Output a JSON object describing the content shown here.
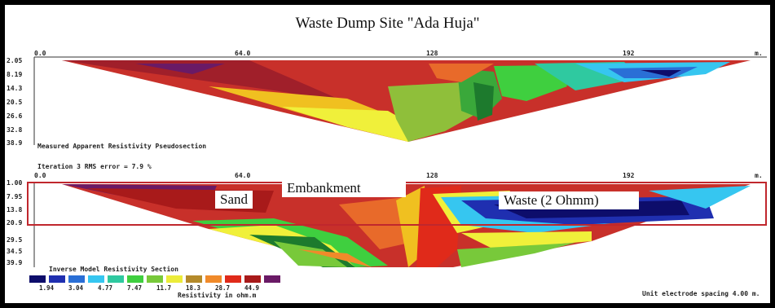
{
  "title": "Waste Dump Site \"Ada Huja\"",
  "x_ticks": [
    "0.0",
    "64.0",
    "128",
    "192",
    "m."
  ],
  "top_section": {
    "y_ticks": [
      "2.05",
      "8.19",
      "14.3",
      "20.5",
      "26.6",
      "32.8",
      "38.9"
    ],
    "caption": "Measured Apparent Resistivity Pseudosection"
  },
  "bottom_section": {
    "header": "Iteration 3 RMS error = 7.9 %",
    "y_ticks": [
      "1.00",
      "7.95",
      "13.8",
      "20.9",
      "29.5",
      "34.5",
      "39.9"
    ],
    "caption": "Inverse Model Resistivity Section"
  },
  "annotations": {
    "sand": "Sand",
    "embankment": "Embankment",
    "waste": "Waste (2 Ohmm)"
  },
  "colorbar": {
    "colors": [
      "#0d0d6b",
      "#1f2fb0",
      "#2a6fd6",
      "#36c6f0",
      "#2fc9a0",
      "#3fcf3f",
      "#78c93a",
      "#ecec3a",
      "#b48a2a",
      "#f08a2a",
      "#e02a1a",
      "#a81a1a",
      "#6a1a66"
    ],
    "values": [
      "1.94",
      "3.04",
      "4.77",
      "7.47",
      "11.7",
      "18.3",
      "28.7",
      "44.9"
    ],
    "label": "Resistivity in ohm.m"
  },
  "footer": "Unit electrode spacing 4.00 m."
}
